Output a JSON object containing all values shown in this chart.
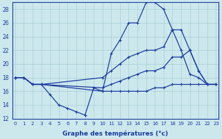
{
  "xlabel": "Graphe des températures (°c)",
  "bg_color": "#cce8ed",
  "line_color": "#1a3a9e",
  "grid_color": "#a8cdd4",
  "xlim": [
    -0.3,
    23.3
  ],
  "ylim": [
    12,
    29
  ],
  "yticks": [
    12,
    14,
    16,
    18,
    20,
    22,
    24,
    26,
    28
  ],
  "xticks": [
    0,
    1,
    2,
    3,
    4,
    5,
    6,
    7,
    8,
    9,
    10,
    11,
    12,
    13,
    14,
    15,
    16,
    17,
    18,
    19,
    20,
    21,
    22,
    23
  ],
  "series": [
    {
      "x": [
        0,
        1,
        2,
        3,
        10,
        11,
        12,
        13,
        14,
        15,
        16,
        17,
        18,
        19,
        20,
        21,
        22,
        23
      ],
      "y": [
        18,
        18,
        17,
        17,
        16,
        21.5,
        23.5,
        26,
        26,
        29,
        29,
        28,
        25,
        22,
        18.5,
        18,
        17,
        17
      ]
    },
    {
      "x": [
        0,
        1,
        2,
        3,
        10,
        11,
        12,
        13,
        14,
        15,
        16,
        17,
        18,
        19,
        20,
        21,
        22,
        23
      ],
      "y": [
        18,
        18,
        17,
        17,
        18,
        19,
        20,
        21,
        21.5,
        22,
        22,
        22.5,
        25,
        25,
        22,
        19,
        17,
        17
      ]
    },
    {
      "x": [
        0,
        1,
        2,
        3,
        10,
        11,
        12,
        13,
        14,
        15,
        16,
        17,
        18,
        19,
        20,
        21,
        22,
        23
      ],
      "y": [
        18,
        18,
        17,
        17,
        16.5,
        17,
        17.5,
        18,
        18.5,
        19,
        19,
        19.5,
        21,
        21,
        22,
        19,
        17,
        17
      ]
    },
    {
      "x": [
        0,
        1,
        2,
        3,
        4,
        5,
        6,
        7,
        8,
        9,
        10,
        11,
        12,
        13,
        14,
        15,
        16,
        17,
        18,
        19,
        20,
        21,
        22,
        23
      ],
      "y": [
        18,
        18,
        17,
        17,
        15.5,
        14,
        13.5,
        13,
        12.5,
        16.5,
        16,
        16,
        16,
        16,
        16,
        16,
        16.5,
        16.5,
        17,
        17,
        17,
        17,
        17,
        17
      ]
    }
  ]
}
